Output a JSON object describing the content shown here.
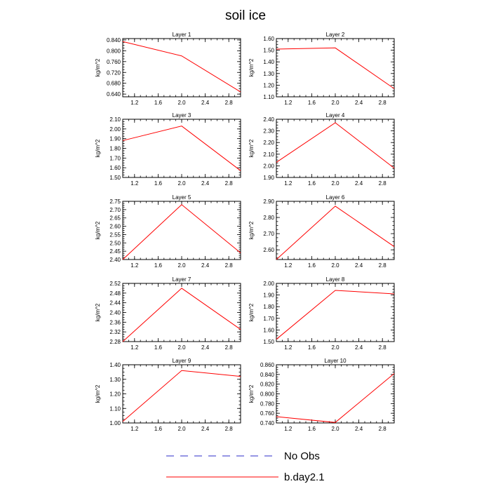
{
  "title": "soil ice",
  "chart_data": [
    {
      "type": "line",
      "title": "Layer 1",
      "ylabel": "kg/m^2",
      "x": [
        1.0,
        2.0,
        3.0
      ],
      "xlim": [
        1.0,
        3.0
      ],
      "xticks": [
        "1.2",
        "1.6",
        "2.0",
        "2.4",
        "2.8"
      ],
      "ylim": [
        0.63,
        0.845
      ],
      "yticks": [
        "0.640",
        "0.680",
        "0.720",
        "0.760",
        "0.800",
        "0.840"
      ],
      "series": [
        {
          "name": "b.day2.1",
          "values": [
            0.834,
            0.781,
            0.648
          ]
        }
      ]
    },
    {
      "type": "line",
      "title": "Layer 2",
      "ylabel": "kg/m^2",
      "x": [
        1.0,
        2.0,
        3.0
      ],
      "xlim": [
        1.0,
        3.0
      ],
      "xticks": [
        "1.2",
        "1.6",
        "2.0",
        "2.4",
        "2.8"
      ],
      "ylim": [
        1.1,
        1.6
      ],
      "yticks": [
        "1.10",
        "1.20",
        "1.30",
        "1.40",
        "1.50",
        "1.60"
      ],
      "series": [
        {
          "name": "b.day2.1",
          "values": [
            1.51,
            1.52,
            1.17
          ]
        }
      ]
    },
    {
      "type": "line",
      "title": "Layer 3",
      "ylabel": "kg/m^2",
      "x": [
        1.0,
        2.0,
        3.0
      ],
      "xlim": [
        1.0,
        3.0
      ],
      "xticks": [
        "1.2",
        "1.6",
        "2.0",
        "2.4",
        "2.8"
      ],
      "ylim": [
        1.5,
        2.1
      ],
      "yticks": [
        "1.50",
        "1.60",
        "1.70",
        "1.80",
        "1.90",
        "2.00",
        "2.10"
      ],
      "series": [
        {
          "name": "b.day2.1",
          "values": [
            1.88,
            2.03,
            1.57
          ]
        }
      ]
    },
    {
      "type": "line",
      "title": "Layer 4",
      "ylabel": "kg/m^2",
      "x": [
        1.0,
        2.0,
        3.0
      ],
      "xlim": [
        1.0,
        3.0
      ],
      "xticks": [
        "1.2",
        "1.6",
        "2.0",
        "2.4",
        "2.8"
      ],
      "ylim": [
        1.9,
        2.4
      ],
      "yticks": [
        "1.90",
        "2.00",
        "2.10",
        "2.20",
        "2.30",
        "2.40"
      ],
      "series": [
        {
          "name": "b.day2.1",
          "values": [
            2.03,
            2.37,
            1.98
          ]
        }
      ]
    },
    {
      "type": "line",
      "title": "Layer 5",
      "ylabel": "kg/m^2",
      "x": [
        1.0,
        2.0,
        3.0
      ],
      "xlim": [
        1.0,
        3.0
      ],
      "xticks": [
        "1.2",
        "1.6",
        "2.0",
        "2.4",
        "2.8"
      ],
      "ylim": [
        2.4,
        2.75
      ],
      "yticks": [
        "2.40",
        "2.45",
        "2.50",
        "2.55",
        "2.60",
        "2.65",
        "2.70",
        "2.75"
      ],
      "series": [
        {
          "name": "b.day2.1",
          "values": [
            2.4,
            2.73,
            2.44
          ]
        }
      ]
    },
    {
      "type": "line",
      "title": "Layer 6",
      "ylabel": "kg/m^2",
      "x": [
        1.0,
        2.0,
        3.0
      ],
      "xlim": [
        1.0,
        3.0
      ],
      "xticks": [
        "1.2",
        "1.6",
        "2.0",
        "2.4",
        "2.8"
      ],
      "ylim": [
        2.54,
        2.9
      ],
      "yticks": [
        "2.60",
        "2.70",
        "2.80",
        "2.90"
      ],
      "series": [
        {
          "name": "b.day2.1",
          "values": [
            2.54,
            2.87,
            2.62
          ]
        }
      ]
    },
    {
      "type": "line",
      "title": "Layer 7",
      "ylabel": "kg/m^2",
      "x": [
        1.0,
        2.0,
        3.0
      ],
      "xlim": [
        1.0,
        3.0
      ],
      "xticks": [
        "1.2",
        "1.6",
        "2.0",
        "2.4",
        "2.8"
      ],
      "ylim": [
        2.28,
        2.52
      ],
      "yticks": [
        "2.28",
        "2.32",
        "2.36",
        "2.40",
        "2.44",
        "2.48",
        "2.52"
      ],
      "series": [
        {
          "name": "b.day2.1",
          "values": [
            2.28,
            2.5,
            2.33
          ]
        }
      ]
    },
    {
      "type": "line",
      "title": "Layer 8",
      "ylabel": "kg/m^2",
      "x": [
        1.0,
        2.0,
        3.0
      ],
      "xlim": [
        1.0,
        3.0
      ],
      "xticks": [
        "1.2",
        "1.6",
        "2.0",
        "2.4",
        "2.8"
      ],
      "ylim": [
        1.5,
        2.0
      ],
      "yticks": [
        "1.50",
        "1.60",
        "1.70",
        "1.80",
        "1.90",
        "2.00"
      ],
      "series": [
        {
          "name": "b.day2.1",
          "values": [
            1.52,
            1.94,
            1.91
          ]
        }
      ]
    },
    {
      "type": "line",
      "title": "Layer 9",
      "ylabel": "kg/m^2",
      "x": [
        1.0,
        2.0,
        3.0
      ],
      "xlim": [
        1.0,
        3.0
      ],
      "xticks": [
        "1.2",
        "1.6",
        "2.0",
        "2.4",
        "2.8"
      ],
      "ylim": [
        1.0,
        1.4
      ],
      "yticks": [
        "1.00",
        "1.10",
        "1.20",
        "1.30",
        "1.40"
      ],
      "series": [
        {
          "name": "b.day2.1",
          "values": [
            1.01,
            1.36,
            1.32
          ]
        }
      ]
    },
    {
      "type": "line",
      "title": "Layer 10",
      "ylabel": "kg/m^2",
      "x": [
        1.0,
        2.0,
        3.0
      ],
      "xlim": [
        1.0,
        3.0
      ],
      "xticks": [
        "1.2",
        "1.6",
        "2.0",
        "2.4",
        "2.8"
      ],
      "ylim": [
        0.74,
        0.86
      ],
      "yticks": [
        "0.740",
        "0.760",
        "0.780",
        "0.800",
        "0.820",
        "0.840",
        "0.860"
      ],
      "series": [
        {
          "name": "b.day2.1",
          "values": [
            0.753,
            0.741,
            0.842
          ]
        }
      ]
    }
  ],
  "legend": [
    {
      "label": "No Obs",
      "color": "#2c2cc8",
      "style": "dashed"
    },
    {
      "label": "b.day2.1",
      "color": "#ff0000",
      "style": "solid"
    }
  ],
  "colors": {
    "series": "#ff0000",
    "axes": "#000000"
  }
}
